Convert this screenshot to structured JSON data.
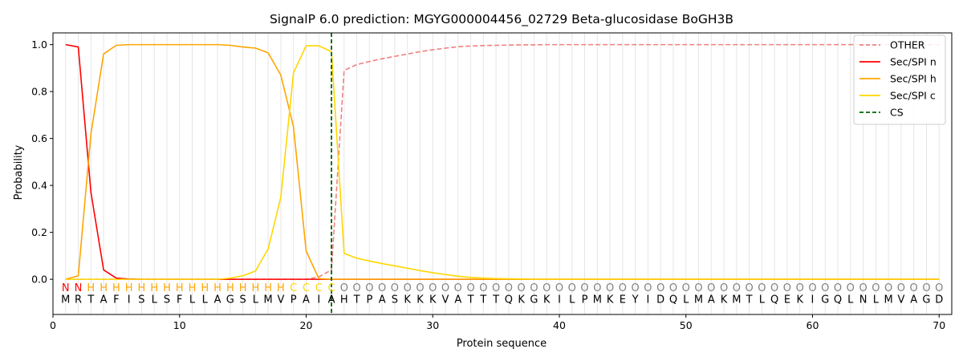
{
  "chart_data": {
    "type": "line",
    "title": "SignalP 6.0 prediction: MGYG000004456_02729 Beta-glucosidase BoGH3B",
    "xlabel": "Protein sequence",
    "ylabel": "Probability",
    "xlim": [
      0,
      71
    ],
    "ylim": [
      -0.15,
      1.05
    ],
    "xticks": [
      0,
      10,
      20,
      30,
      40,
      50,
      60,
      70
    ],
    "yticks": [
      0.0,
      0.2,
      0.4,
      0.6,
      0.8,
      1.0
    ],
    "legend_position": "top-right",
    "sequence": [
      "M",
      "R",
      "T",
      "A",
      "F",
      "I",
      "S",
      "L",
      "S",
      "F",
      "L",
      "L",
      "A",
      "G",
      "S",
      "L",
      "M",
      "V",
      "P",
      "A",
      "I",
      "A",
      "H",
      "T",
      "P",
      "A",
      "S",
      "K",
      "K",
      "K",
      "V",
      "A",
      "T",
      "T",
      "T",
      "Q",
      "K",
      "G",
      "K",
      "I",
      "L",
      "P",
      "M",
      "K",
      "E",
      "Y",
      "I",
      "D",
      "Q",
      "L",
      "M",
      "A",
      "K",
      "M",
      "T",
      "L",
      "Q",
      "E",
      "K",
      "I",
      "G",
      "Q",
      "L",
      "N",
      "L",
      "M",
      "V",
      "A",
      "G",
      "D"
    ],
    "predicted_labels": [
      "N",
      "N",
      "H",
      "H",
      "H",
      "H",
      "H",
      "H",
      "H",
      "H",
      "H",
      "H",
      "H",
      "H",
      "H",
      "H",
      "H",
      "H",
      "C",
      "C",
      "C",
      "C",
      "O",
      "O",
      "O",
      "O",
      "O",
      "O",
      "O",
      "O",
      "O",
      "O",
      "O",
      "O",
      "O",
      "O",
      "O",
      "O",
      "O",
      "O",
      "O",
      "O",
      "O",
      "O",
      "O",
      "O",
      "O",
      "O",
      "O",
      "O",
      "O",
      "O",
      "O",
      "O",
      "O",
      "O",
      "O",
      "O",
      "O",
      "O",
      "O",
      "O",
      "O",
      "O",
      "O",
      "O",
      "O",
      "O",
      "O",
      "O"
    ],
    "label_colors": {
      "N": "#ff0000",
      "H": "#ffa500",
      "C": "#ffd700",
      "O": "#808080"
    },
    "cleavage_site": 22,
    "series": [
      {
        "name": "OTHER",
        "color": "#f08080",
        "style": "dashed",
        "values": [
          0,
          0,
          0,
          0,
          0,
          0,
          0,
          0,
          0,
          0,
          0,
          0,
          0,
          0,
          0,
          0,
          0,
          0,
          0,
          0,
          0.01,
          0.04,
          0.89,
          0.915,
          0.928,
          0.94,
          0.95,
          0.96,
          0.97,
          0.978,
          0.985,
          0.991,
          0.994,
          0.996,
          0.997,
          0.998,
          0.999,
          0.999,
          1,
          1,
          1,
          1,
          1,
          1,
          1,
          1,
          1,
          1,
          1,
          1,
          1,
          1,
          1,
          1,
          1,
          1,
          1,
          1,
          1,
          1,
          1,
          1,
          1,
          1,
          1,
          1,
          1,
          1,
          1,
          1
        ]
      },
      {
        "name": "Sec/SPI n",
        "color": "#ff0000",
        "style": "solid",
        "values": [
          1.0,
          0.99,
          0.37,
          0.04,
          0.005,
          0.001,
          0,
          0,
          0,
          0,
          0,
          0,
          0,
          0,
          0,
          0,
          0,
          0,
          0,
          0,
          0,
          0,
          0,
          0,
          0,
          0,
          0,
          0,
          0,
          0,
          0,
          0,
          0,
          0,
          0,
          0,
          0,
          0,
          0,
          0,
          0,
          0,
          0,
          0,
          0,
          0,
          0,
          0,
          0,
          0,
          0,
          0,
          0,
          0,
          0,
          0,
          0,
          0,
          0,
          0,
          0,
          0,
          0,
          0,
          0,
          0,
          0,
          0,
          0,
          0
        ]
      },
      {
        "name": "Sec/SPI h",
        "color": "#ffa500",
        "style": "solid",
        "values": [
          0,
          0.015,
          0.62,
          0.96,
          0.997,
          1.0,
          1.0,
          1.0,
          1.0,
          1.0,
          1.0,
          1.0,
          1.0,
          0.997,
          0.99,
          0.985,
          0.965,
          0.87,
          0.65,
          0.12,
          0.003,
          0,
          0,
          0,
          0,
          0,
          0,
          0,
          0,
          0,
          0,
          0,
          0,
          0,
          0,
          0,
          0,
          0,
          0,
          0,
          0,
          0,
          0,
          0,
          0,
          0,
          0,
          0,
          0,
          0,
          0,
          0,
          0,
          0,
          0,
          0,
          0,
          0,
          0,
          0,
          0,
          0,
          0,
          0,
          0,
          0,
          0,
          0,
          0,
          0
        ]
      },
      {
        "name": "Sec/SPI c",
        "color": "#ffd700",
        "style": "solid",
        "values": [
          0,
          0,
          0,
          0,
          0,
          0,
          0,
          0,
          0,
          0,
          0,
          0,
          0,
          0.005,
          0.015,
          0.035,
          0.13,
          0.35,
          0.88,
          0.995,
          0.995,
          0.97,
          0.11,
          0.09,
          0.078,
          0.067,
          0.057,
          0.047,
          0.037,
          0.028,
          0.02,
          0.013,
          0.008,
          0.005,
          0.003,
          0.002,
          0.001,
          0,
          0,
          0,
          0,
          0,
          0,
          0,
          0,
          0,
          0,
          0,
          0,
          0,
          0,
          0,
          0,
          0,
          0,
          0,
          0,
          0,
          0,
          0,
          0,
          0,
          0,
          0,
          0,
          0,
          0,
          0,
          0,
          0
        ]
      },
      {
        "name": "CS",
        "color": "#006400",
        "style": "dashed",
        "x": 22
      }
    ]
  }
}
